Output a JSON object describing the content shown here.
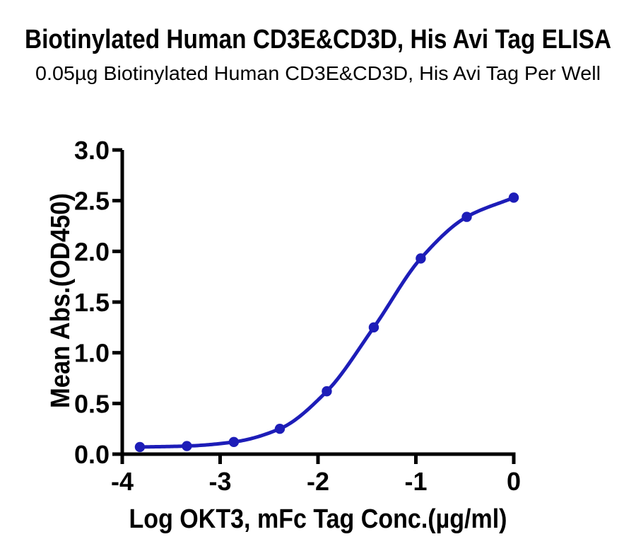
{
  "chart_data": {
    "type": "line",
    "title": "Biotinylated Human CD3E&CD3D, His Avi Tag ELISA",
    "subtitle": "0.05µg Biotinylated Human CD3E&CD3D, His Avi Tag Per Well",
    "xlabel": "Log OKT3, mFc Tag Conc.(µg/ml)",
    "ylabel": "Mean Abs.(OD450)",
    "xlim": [
      -4,
      0
    ],
    "ylim": [
      0,
      3
    ],
    "xticks": [
      -4,
      -3,
      -2,
      -1,
      0
    ],
    "xtick_labels": [
      "-4",
      "-3",
      "-2",
      "-1",
      "0"
    ],
    "yticks": [
      0,
      0.5,
      1,
      1.5,
      2,
      2.5,
      3
    ],
    "ytick_labels": [
      "0.0",
      "0.5",
      "1.0",
      "1.5",
      "2.0",
      "2.5",
      "3.0"
    ],
    "grid": false,
    "legend": "none",
    "curve_style": "sigmoidal-4PL-fit-through-points",
    "series": [
      {
        "name": "Biotinylated Human CD3E&CD3D, His Avi Tag",
        "marker": "circle",
        "x": [
          -3.82,
          -3.34,
          -2.86,
          -2.39,
          -1.91,
          -1.43,
          -0.95,
          -0.48,
          0.0
        ],
        "y": [
          0.07,
          0.08,
          0.12,
          0.25,
          0.62,
          1.25,
          1.93,
          2.34,
          2.53
        ]
      }
    ]
  },
  "colors": {
    "curve": "#1d1db8",
    "axis": "#000000",
    "text": "#000000",
    "background": "#ffffff"
  }
}
